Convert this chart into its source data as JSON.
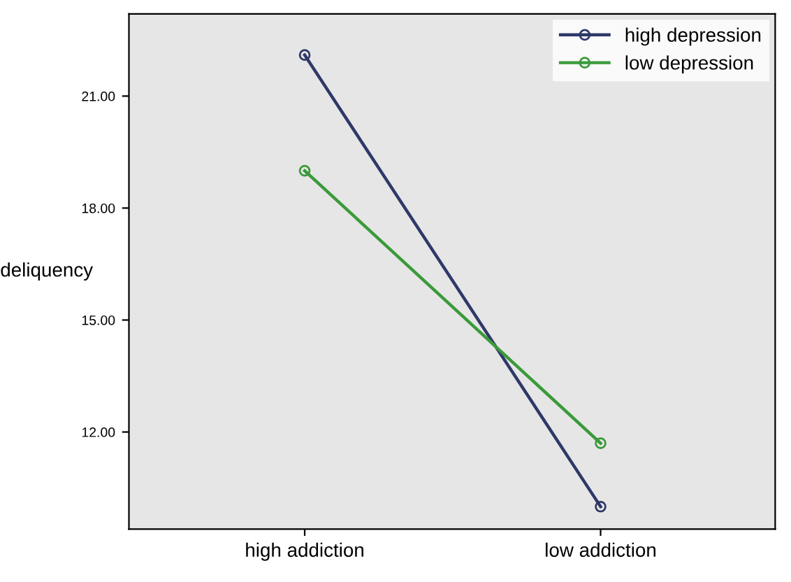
{
  "chart_data": {
    "type": "line",
    "ylabel": "deliquency",
    "categories": [
      "high addiction",
      "low addiction"
    ],
    "series": [
      {
        "name": "high depression",
        "color": "#2f3868",
        "values": [
          22.1,
          10.0
        ]
      },
      {
        "name": "low depression",
        "color": "#3a9a3a",
        "values": [
          19.0,
          11.7
        ]
      }
    ],
    "ylim": [
      9.4,
      23.2
    ],
    "yticks": [
      {
        "value": 12,
        "label": "12.00"
      },
      {
        "value": 15,
        "label": "15.00"
      },
      {
        "value": 18,
        "label": "18.00"
      },
      {
        "value": 21,
        "label": "21.00"
      }
    ],
    "grid": false,
    "legend": "top right",
    "marker": "circle",
    "line_style": "solid"
  }
}
